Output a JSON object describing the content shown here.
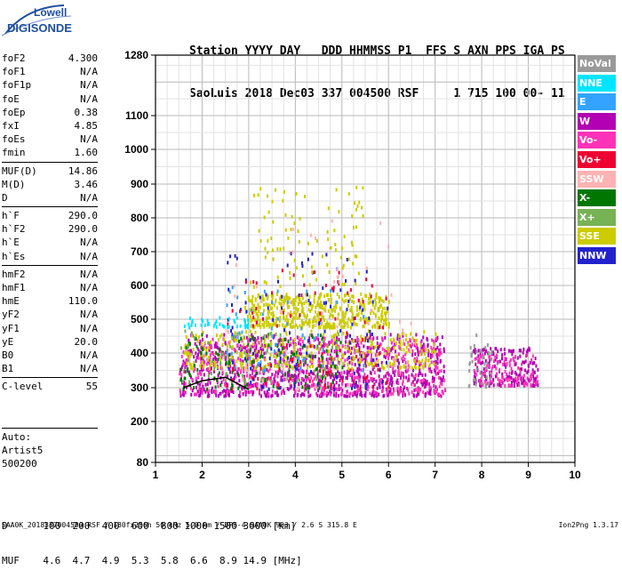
{
  "logo": {
    "line1": "Lowell",
    "line2": "DIGISONDE"
  },
  "header": {
    "line1": "Station YYYY DAY   DDD HHMMSS P1  FFS S AXN PPS IGA PS",
    "line2": "SaoLuis 2018 Dec03 337 004500 RSF     1 715 100 00- 11"
  },
  "params_group1": [
    {
      "name": "foF2",
      "value": "4.300"
    },
    {
      "name": "foF1",
      "value": "N/A"
    },
    {
      "name": "foF1p",
      "value": "N/A"
    },
    {
      "name": "foE",
      "value": "N/A"
    },
    {
      "name": "foEp",
      "value": "0.38"
    },
    {
      "name": "fxI",
      "value": "4.85"
    },
    {
      "name": "foEs",
      "value": "N/A"
    },
    {
      "name": "fmin",
      "value": "1.60"
    }
  ],
  "params_group2": [
    {
      "name": "MUF(D)",
      "value": "14.86"
    },
    {
      "name": "M(D)",
      "value": "3.46"
    },
    {
      "name": "D",
      "value": "N/A"
    }
  ],
  "params_group3": [
    {
      "name": "h`F",
      "value": "290.0"
    },
    {
      "name": "h`F2",
      "value": "290.0"
    },
    {
      "name": "h`E",
      "value": "N/A"
    },
    {
      "name": "h`Es",
      "value": "N/A"
    }
  ],
  "params_group4": [
    {
      "name": "hmF2",
      "value": "N/A"
    },
    {
      "name": "hmF1",
      "value": "N/A"
    },
    {
      "name": "hmE",
      "value": "110.0"
    },
    {
      "name": "yF2",
      "value": "N/A"
    },
    {
      "name": "yF1",
      "value": "N/A"
    },
    {
      "name": "yE",
      "value": "20.0"
    },
    {
      "name": "B0",
      "value": "N/A"
    },
    {
      "name": "B1",
      "value": "N/A"
    }
  ],
  "params_group5": [
    {
      "name": "C-level",
      "value": "55"
    }
  ],
  "auto": {
    "line1": "Auto:",
    "line2": "Artist5",
    "line3": "500200"
  },
  "legend": [
    {
      "label": "NoVal",
      "color": "#999999"
    },
    {
      "label": "NNE",
      "color": "#00e5ff"
    },
    {
      "label": "E",
      "color": "#33a3ff"
    },
    {
      "label": "W",
      "color": "#b200b2"
    },
    {
      "label": "Vo-",
      "color": "#ff33b8"
    },
    {
      "label": "Vo+",
      "color": "#ee0033"
    },
    {
      "label": "SSW",
      "color": "#ffb3b3"
    },
    {
      "label": "X-",
      "color": "#007700"
    },
    {
      "label": "X+",
      "color": "#77b255"
    },
    {
      "label": "SSE",
      "color": "#cccc00"
    },
    {
      "label": "NNW",
      "color": "#2222cc"
    }
  ],
  "chart_data": {
    "type": "scatter",
    "title": "",
    "xlabel": "",
    "ylabel": "",
    "xlim": [
      1,
      10
    ],
    "ylim": [
      80,
      1280
    ],
    "x_ticks": [
      1,
      2,
      3,
      4,
      5,
      6,
      7,
      8,
      9,
      10
    ],
    "y_ticks": [
      80,
      200,
      300,
      400,
      500,
      600,
      700,
      800,
      900,
      1000,
      1100,
      1280
    ],
    "y_scale": "nonlinear",
    "grid": true,
    "legend_placement": "right",
    "clusters": [
      {
        "series": "W",
        "x_range": [
          1.5,
          7.2
        ],
        "y_range": [
          280,
          460
        ],
        "density": 900
      },
      {
        "series": "Vo-",
        "x_range": [
          1.5,
          7.2
        ],
        "y_range": [
          285,
          450
        ],
        "density": 500
      },
      {
        "series": "SSE",
        "x_range": [
          2.9,
          6.0
        ],
        "y_range": [
          480,
          580
        ],
        "density": 500
      },
      {
        "series": "SSE",
        "x_range": [
          1.6,
          7.0
        ],
        "y_range": [
          360,
          470
        ],
        "density": 350
      },
      {
        "series": "X-",
        "x_range": [
          1.5,
          5.0
        ],
        "y_range": [
          300,
          460
        ],
        "density": 140
      },
      {
        "series": "X+",
        "x_range": [
          1.5,
          5.0
        ],
        "y_range": [
          320,
          470
        ],
        "density": 80
      },
      {
        "series": "NNW",
        "x_range": [
          2.5,
          6.0
        ],
        "y_range": [
          300,
          700
        ],
        "density": 120
      },
      {
        "series": "Vo+",
        "x_range": [
          2.5,
          6.0
        ],
        "y_range": [
          300,
          650
        ],
        "density": 100
      },
      {
        "series": "NNE",
        "x_range": [
          1.6,
          3.0
        ],
        "y_range": [
          480,
          510
        ],
        "density": 40
      },
      {
        "series": "E",
        "x_range": [
          2.5,
          5.5
        ],
        "y_range": [
          350,
          600
        ],
        "density": 50
      },
      {
        "series": "SSW",
        "x_range": [
          2.5,
          6.5
        ],
        "y_range": [
          300,
          800
        ],
        "density": 60
      },
      {
        "series": "SSE",
        "x_range": [
          2.8,
          5.5
        ],
        "y_range": [
          600,
          900
        ],
        "density": 90
      },
      {
        "series": "W",
        "x_range": [
          7.8,
          9.2
        ],
        "y_range": [
          310,
          420
        ],
        "density": 180
      },
      {
        "series": "Vo-",
        "x_range": [
          7.8,
          9.2
        ],
        "y_range": [
          310,
          400
        ],
        "density": 100
      },
      {
        "series": "NoVal",
        "x_range": [
          7.7,
          8.2
        ],
        "y_range": [
          300,
          460
        ],
        "density": 40
      }
    ],
    "trace": {
      "name": "h`F trace",
      "x": [
        1.6,
        2.0,
        2.5,
        3.0
      ],
      "y": [
        300,
        320,
        330,
        295
      ]
    }
  },
  "footer": {
    "d_label": "D",
    "d_values": "100  200  400  600  800 1000 1500 3000 [km]",
    "muf_label": "MUF",
    "muf_values": "4.6  4.7  4.9  5.3  5.8  6.6  8.9 14.9 [MHz]",
    "info": "SAA0K_2018337004500.RSF / 180fx256h 50 kHz 5.0 km / DPS-4 SAA0K 903 / 2.6 S 315.8 E",
    "version": "Ion2Png 1.3.17"
  }
}
